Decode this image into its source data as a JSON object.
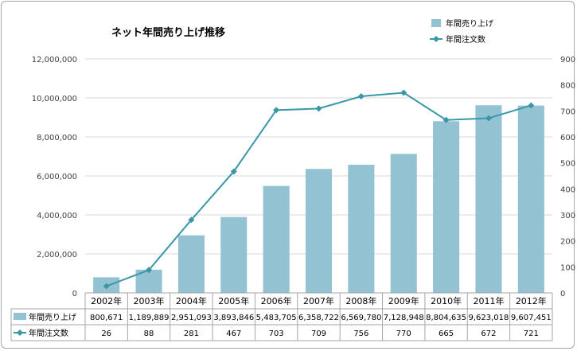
{
  "chart_data": {
    "type": "bar+line",
    "title": "ネット年間売り上げ推移",
    "categories": [
      "2002年",
      "2003年",
      "2004年",
      "2005年",
      "2006年",
      "2007年",
      "2008年",
      "2009年",
      "2010年",
      "2011年",
      "2012年"
    ],
    "series": [
      {
        "name": "年間売り上げ",
        "type": "bar",
        "axis": "left",
        "values": [
          800671,
          1189889,
          2951093,
          3893846,
          5483705,
          6358722,
          6569780,
          7128948,
          8804635,
          9623018,
          9607451
        ],
        "labels": [
          "800,671",
          "1,189,889",
          "2,951,093",
          "3,893,846",
          "5,483,705",
          "6,358,722",
          "6,569,780",
          "7,128,948",
          "8,804,635",
          "9,623,018",
          "9,607,451"
        ],
        "color": "#93c3d3"
      },
      {
        "name": "年間注文数",
        "type": "line",
        "axis": "right",
        "values": [
          26,
          88,
          281,
          467,
          703,
          709,
          756,
          770,
          665,
          672,
          721
        ],
        "labels": [
          "26",
          "88",
          "281",
          "467",
          "703",
          "709",
          "756",
          "770",
          "665",
          "672",
          "721"
        ],
        "color": "#3a97a8"
      }
    ],
    "ylim_left": [
      0,
      12000000
    ],
    "ylim_right": [
      0,
      900
    ],
    "yticks_left": [
      "0",
      "2,000,000",
      "4,000,000",
      "6,000,000",
      "8,000,000",
      "10,000,000",
      "12,000,000"
    ],
    "yticks_right": [
      "0",
      "100",
      "200",
      "300",
      "400",
      "500",
      "600",
      "700",
      "800",
      "900"
    ],
    "grid": true,
    "legend": "top-right",
    "data_table": true
  }
}
